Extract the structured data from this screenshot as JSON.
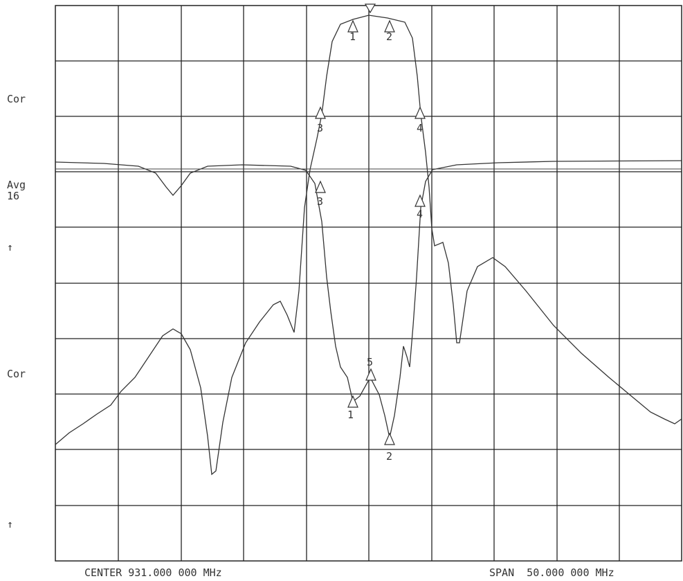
{
  "screen": {
    "left_labels": [
      "Cor",
      "Avg",
      "16",
      "↑",
      "Cor",
      "↑"
    ],
    "footer": {
      "center": "CENTER 931.000 000 MHz",
      "span": "SPAN  50.000 000 MHz"
    },
    "upper_markers": [
      "1",
      "2",
      "3",
      "4"
    ],
    "lower_markers": [
      "3",
      "4",
      "1",
      "5",
      "2"
    ]
  }
}
